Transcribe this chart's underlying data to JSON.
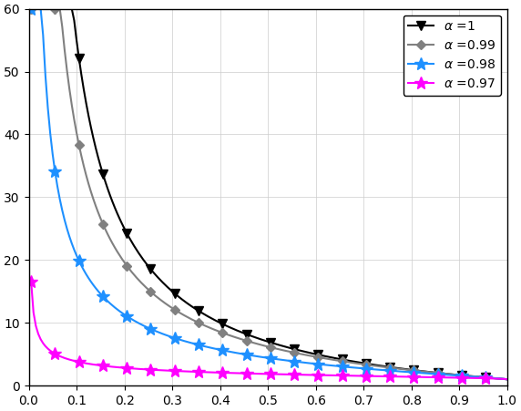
{
  "xlim": [
    0,
    1
  ],
  "ylim": [
    0,
    60
  ],
  "xticks": [
    0,
    0.1,
    0.2,
    0.3,
    0.4,
    0.5,
    0.6,
    0.7,
    0.8,
    0.9,
    1.0
  ],
  "yticks": [
    0,
    10,
    20,
    30,
    40,
    50,
    60
  ],
  "series": [
    {
      "label": "$\\alpha$ =1",
      "color": "#000000",
      "marker": "v",
      "markersize": 7,
      "linewidth": 1.5,
      "C": 6.0,
      "power": 1.0
    },
    {
      "label": "$\\alpha$ =0.99",
      "color": "#808080",
      "marker": "D",
      "markersize": 5,
      "linewidth": 1.5,
      "C": 5.2,
      "power": 0.92
    },
    {
      "label": "$\\alpha$ =0.98",
      "color": "#1E90FF",
      "marker": "*",
      "markersize": 10,
      "linewidth": 1.5,
      "C": 3.4,
      "power": 0.8
    },
    {
      "label": "$\\alpha$ =0.97",
      "color": "#FF00FF",
      "marker": "*",
      "markersize": 10,
      "linewidth": 1.5,
      "C": 0.85,
      "power": 0.55
    }
  ],
  "n_points": 200,
  "marker_every": 10,
  "figsize": [
    5.72,
    4.51
  ],
  "dpi": 100
}
